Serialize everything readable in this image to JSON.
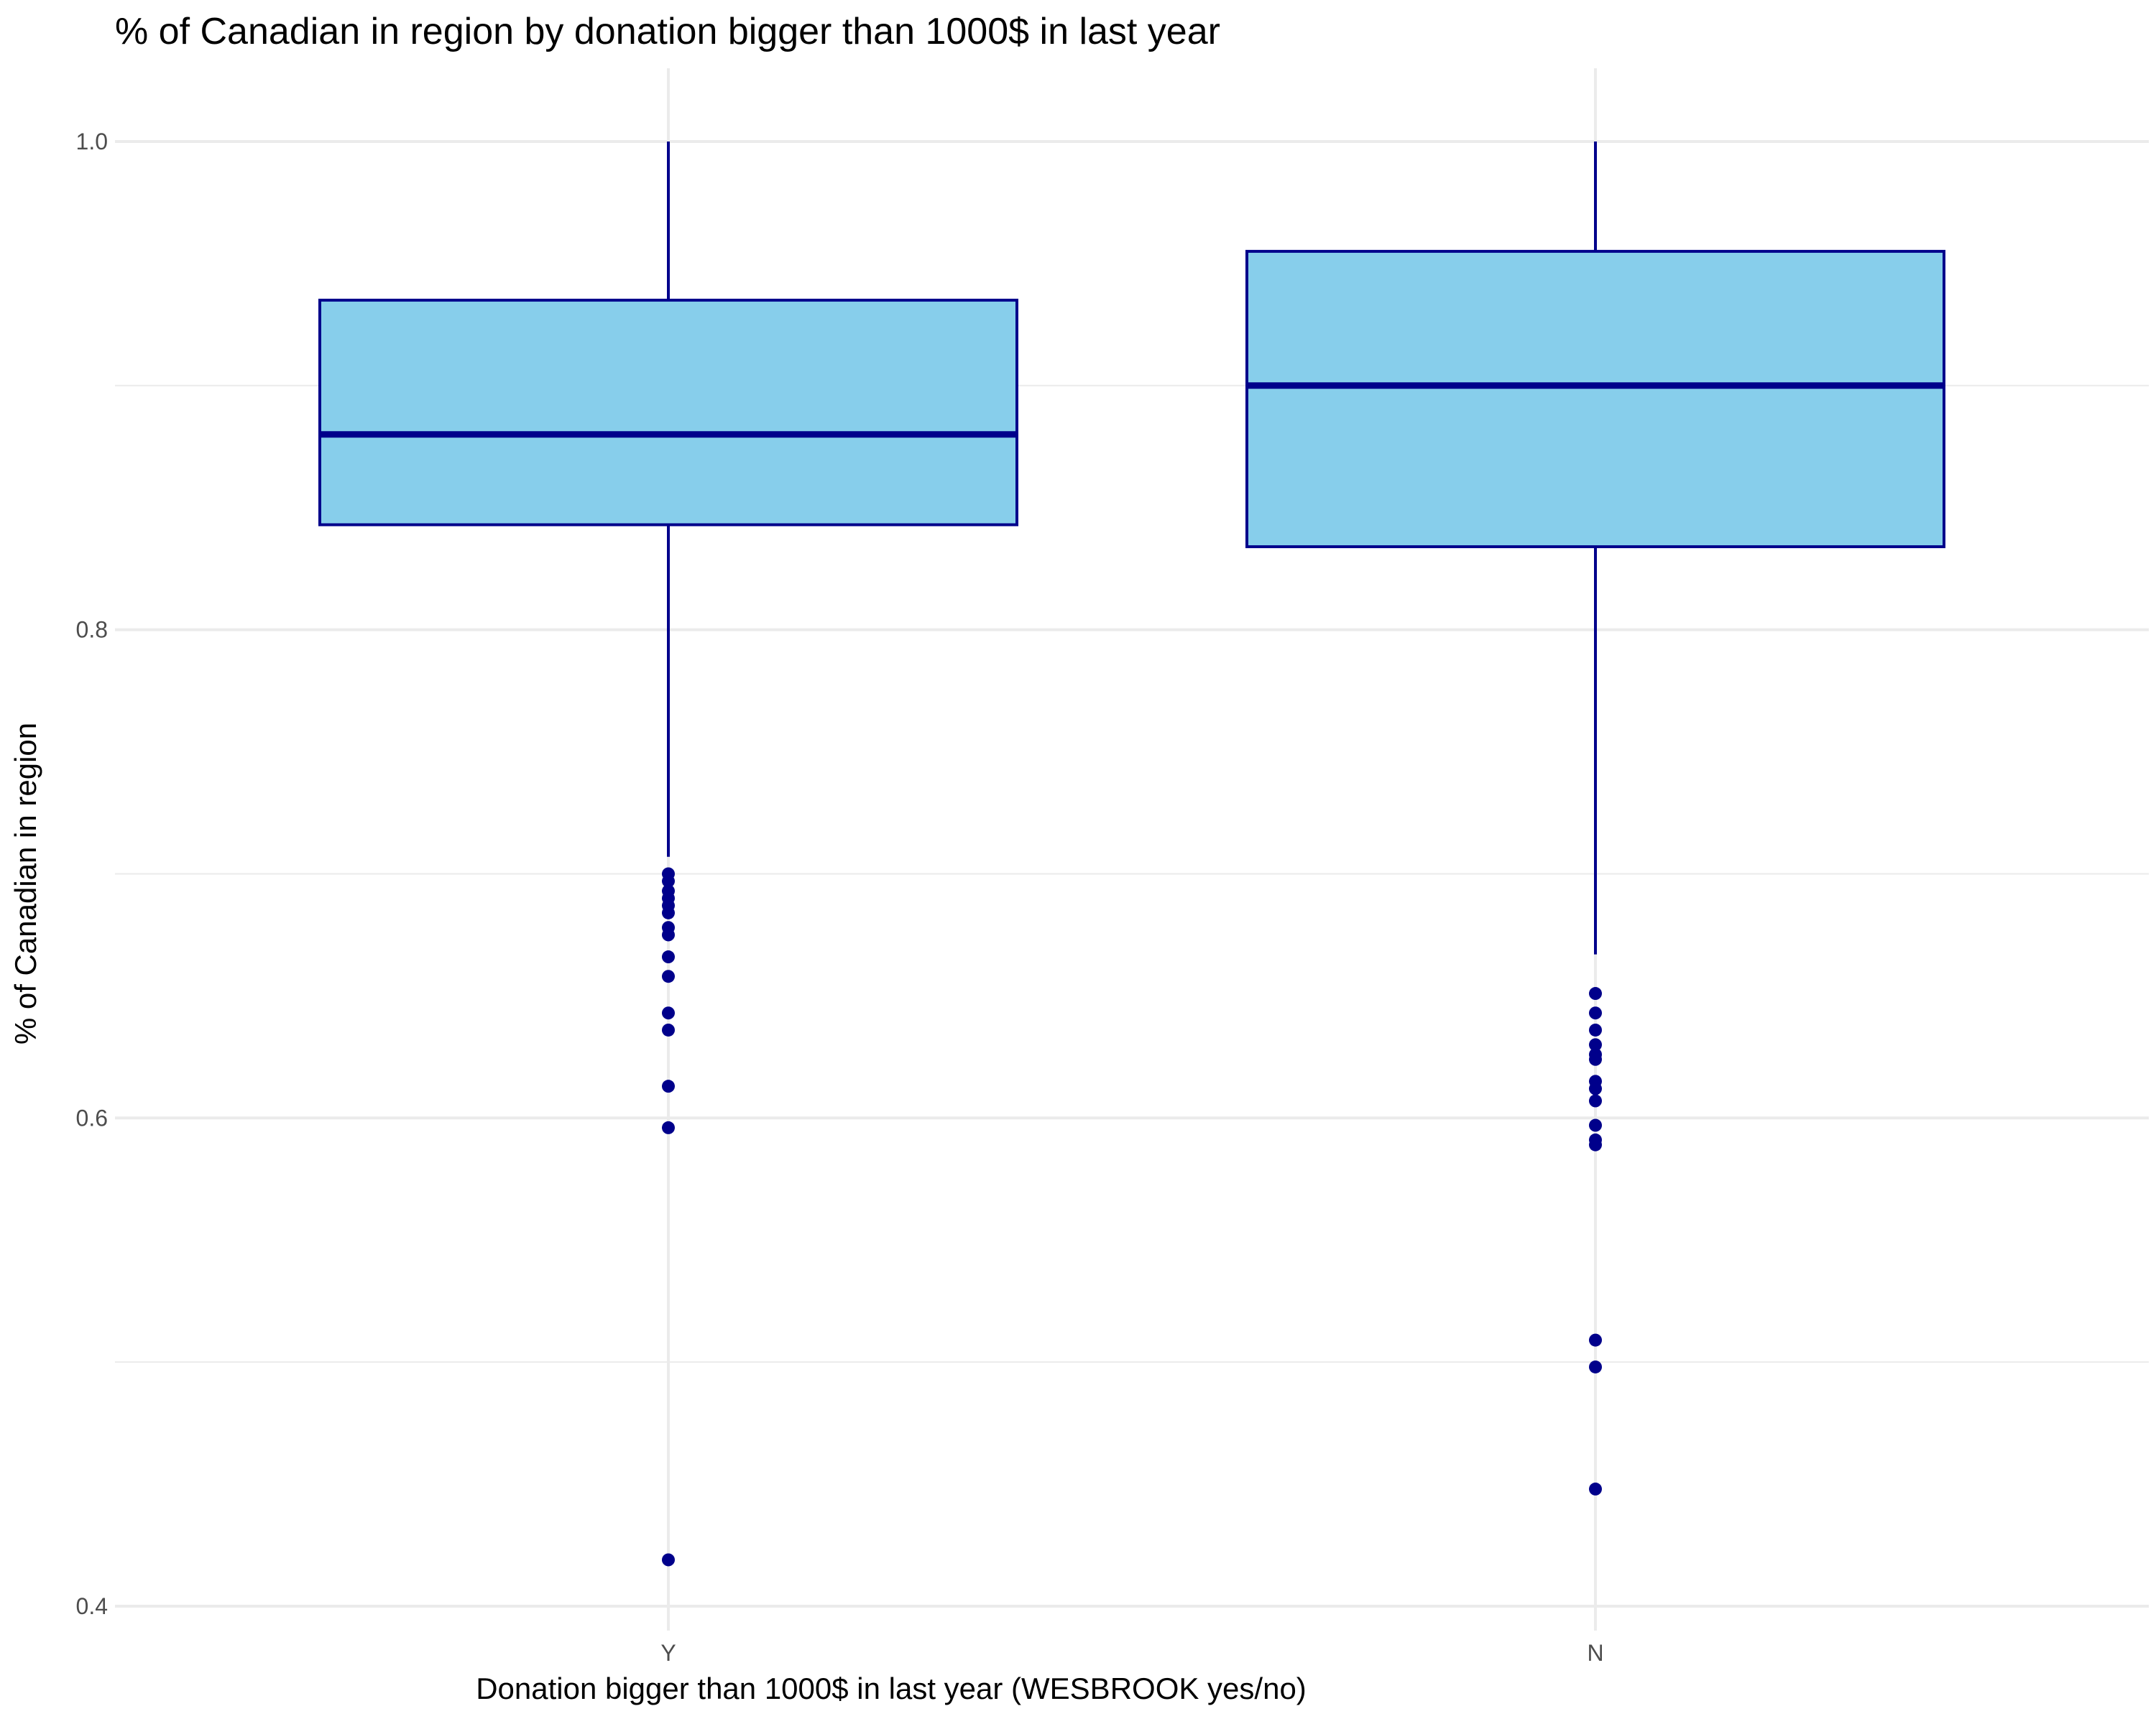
{
  "chart_data": {
    "type": "box",
    "title": "% of Canadian in region by donation bigger than 1000$ in last year",
    "xlabel": "Donation bigger than 1000$ in last year (WESBROOK yes/no)",
    "ylabel": "% of Canadian in region",
    "ylim": [
      0.39,
      1.03
    ],
    "yticks": [
      0.4,
      0.6,
      0.8,
      1.0
    ],
    "ytick_labels": [
      "0.4",
      "0.6",
      "0.8",
      "1.0"
    ],
    "yminor": [
      0.5,
      0.7,
      0.9
    ],
    "grid": true,
    "categories": [
      "Y",
      "N"
    ],
    "boxes": [
      {
        "category": "Y",
        "whisker_low": 0.707,
        "q1": 0.843,
        "median": 0.88,
        "q3": 0.935,
        "whisker_high": 1.0,
        "outliers": [
          0.7,
          0.697,
          0.693,
          0.69,
          0.687,
          0.684,
          0.678,
          0.675,
          0.666,
          0.658,
          0.643,
          0.636,
          0.613,
          0.596,
          0.419
        ]
      },
      {
        "category": "N",
        "whisker_low": 0.667,
        "q1": 0.834,
        "median": 0.9,
        "q3": 0.955,
        "whisker_high": 1.0,
        "outliers": [
          0.651,
          0.643,
          0.636,
          0.63,
          0.626,
          0.624,
          0.615,
          0.612,
          0.607,
          0.597,
          0.591,
          0.589,
          0.509,
          0.498,
          0.448
        ]
      }
    ],
    "colors": {
      "box_fill": "#87CEEB",
      "box_stroke": "#00008B",
      "outlier": "#00008B",
      "grid": "#EBEBEB",
      "tick_text": "#4D4D4D"
    }
  }
}
